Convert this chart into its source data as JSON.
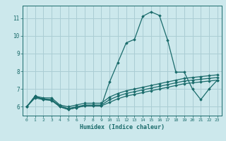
{
  "title": "",
  "xlabel": "Humidex (Indice chaleur)",
  "ylabel": "",
  "bg_color": "#cce8ec",
  "grid_color": "#aacdd4",
  "line_color": "#1a6b6b",
  "xlim": [
    -0.5,
    23.5
  ],
  "ylim": [
    5.5,
    11.7
  ],
  "yticks": [
    6,
    7,
    8,
    9,
    10,
    11
  ],
  "xticks": [
    0,
    1,
    2,
    3,
    4,
    5,
    6,
    7,
    8,
    9,
    10,
    11,
    12,
    13,
    14,
    15,
    16,
    17,
    18,
    19,
    20,
    21,
    22,
    23
  ],
  "lines": [
    {
      "x": [
        0,
        1,
        2,
        3,
        4,
        5,
        6,
        7,
        8,
        9,
        10,
        11,
        12,
        13,
        14,
        15,
        16,
        17,
        18,
        19,
        20,
        21,
        22,
        23
      ],
      "y": [
        6.0,
        6.6,
        6.4,
        6.4,
        6.0,
        5.85,
        5.95,
        6.05,
        6.05,
        6.05,
        7.4,
        8.5,
        9.6,
        9.8,
        11.1,
        11.35,
        11.15,
        9.75,
        7.95,
        7.95,
        7.0,
        6.4,
        7.0,
        7.5
      ]
    },
    {
      "x": [
        0,
        1,
        2,
        3,
        4,
        5,
        6,
        7,
        8,
        9,
        10,
        11,
        12,
        13,
        14,
        15,
        16,
        17,
        18,
        19,
        20,
        21,
        22,
        23
      ],
      "y": [
        6.0,
        6.6,
        6.5,
        6.5,
        6.1,
        6.0,
        6.1,
        6.2,
        6.2,
        6.2,
        6.55,
        6.75,
        6.9,
        7.0,
        7.1,
        7.2,
        7.3,
        7.4,
        7.5,
        7.6,
        7.65,
        7.7,
        7.75,
        7.8
      ]
    },
    {
      "x": [
        0,
        1,
        2,
        3,
        4,
        5,
        6,
        7,
        8,
        9,
        10,
        11,
        12,
        13,
        14,
        15,
        16,
        17,
        18,
        19,
        20,
        21,
        22,
        23
      ],
      "y": [
        6.0,
        6.55,
        6.45,
        6.4,
        6.05,
        5.9,
        6.0,
        6.1,
        6.1,
        6.1,
        6.4,
        6.6,
        6.75,
        6.85,
        6.95,
        7.05,
        7.15,
        7.25,
        7.35,
        7.45,
        7.5,
        7.55,
        7.6,
        7.65
      ]
    },
    {
      "x": [
        0,
        1,
        2,
        3,
        4,
        5,
        6,
        7,
        8,
        9,
        10,
        11,
        12,
        13,
        14,
        15,
        16,
        17,
        18,
        19,
        20,
        21,
        22,
        23
      ],
      "y": [
        6.0,
        6.5,
        6.4,
        6.35,
        6.0,
        5.85,
        5.95,
        6.05,
        6.05,
        6.05,
        6.25,
        6.45,
        6.6,
        6.7,
        6.8,
        6.9,
        7.0,
        7.1,
        7.2,
        7.3,
        7.35,
        7.4,
        7.45,
        7.5
      ]
    }
  ]
}
